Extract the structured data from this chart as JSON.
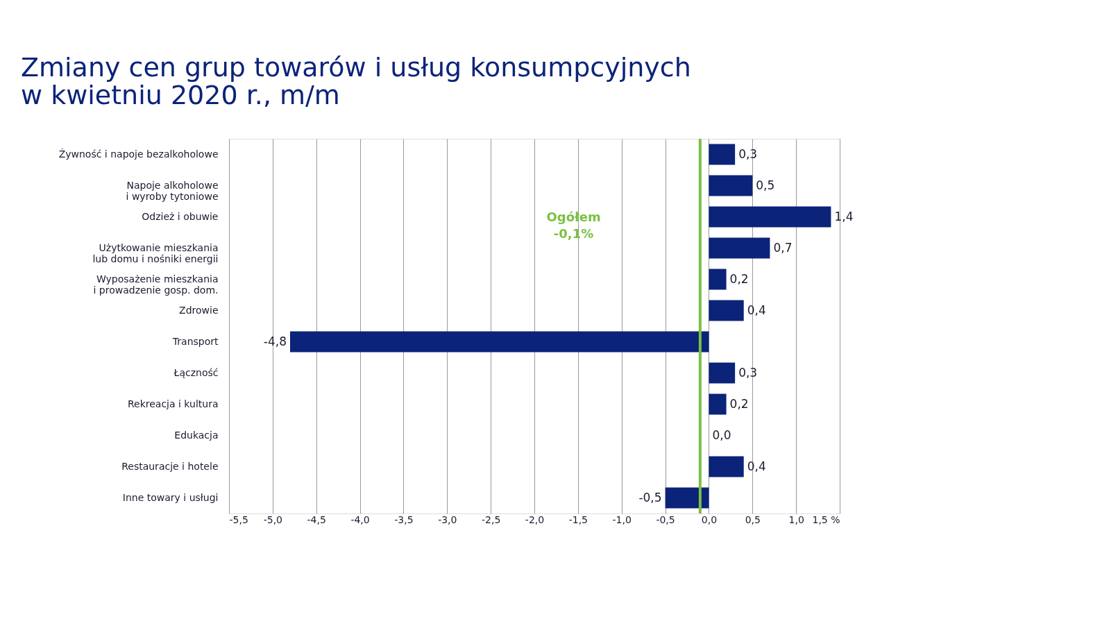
{
  "chart_data": {
    "type": "bar",
    "orientation": "horizontal",
    "title": "Zmiany cen grup towarów i usług konsumpcyjnych\nw kwietniu 2020 r., m/m",
    "categories": [
      "Żywność i napoje bezalkoholowe",
      "Napoje alkoholowe\ni wyroby tytoniowe",
      "Odzież i obuwie",
      "Użytkowanie mieszkania\nlub domu i nośniki energii",
      "Wyposażenie mieszkania\ni prowadzenie gosp. dom.",
      "Zdrowie",
      "Transport",
      "Łączność",
      "Rekreacja i kultura",
      "Edukacja",
      "Restauracje i hotele",
      "Inne towary i usługi"
    ],
    "values": [
      0.3,
      0.5,
      1.4,
      0.7,
      0.2,
      0.4,
      -4.8,
      0.3,
      0.2,
      0.0,
      0.4,
      -0.5
    ],
    "value_labels": [
      "0,3",
      "0,5",
      "1,4",
      "0,7",
      "0,2",
      "0,4",
      "-4,8",
      "0,3",
      "0,2",
      "0,0",
      "0,4",
      "-0,5"
    ],
    "color": "#0b2379",
    "xlim": [
      -5.5,
      1.5
    ],
    "xticks": [
      {
        "value": -5.5,
        "label": "-5,5"
      },
      {
        "value": -5.0,
        "label": "-5,0"
      },
      {
        "value": -4.5,
        "label": "-4,5"
      },
      {
        "value": -4.0,
        "label": "-4,0"
      },
      {
        "value": -3.5,
        "label": "-3,5"
      },
      {
        "value": -3.0,
        "label": "-3,0"
      },
      {
        "value": -2.5,
        "label": "-2,5"
      },
      {
        "value": -2.0,
        "label": "-2,0"
      },
      {
        "value": -1.5,
        "label": "-1,5"
      },
      {
        "value": -1.0,
        "label": "-1,0"
      },
      {
        "value": -0.5,
        "label": "-0,5"
      },
      {
        "value": 0.0,
        "label": "0,0"
      },
      {
        "value": 0.5,
        "label": "0,5"
      },
      {
        "value": 1.0,
        "label": "1,0"
      },
      {
        "value": 1.5,
        "label": "1,5 %"
      }
    ],
    "grid": "x",
    "ref_lines": [
      {
        "axis": "x",
        "value": -0.1,
        "label": "Ogółem\n-0,1%",
        "color": "#7ac143"
      }
    ]
  }
}
